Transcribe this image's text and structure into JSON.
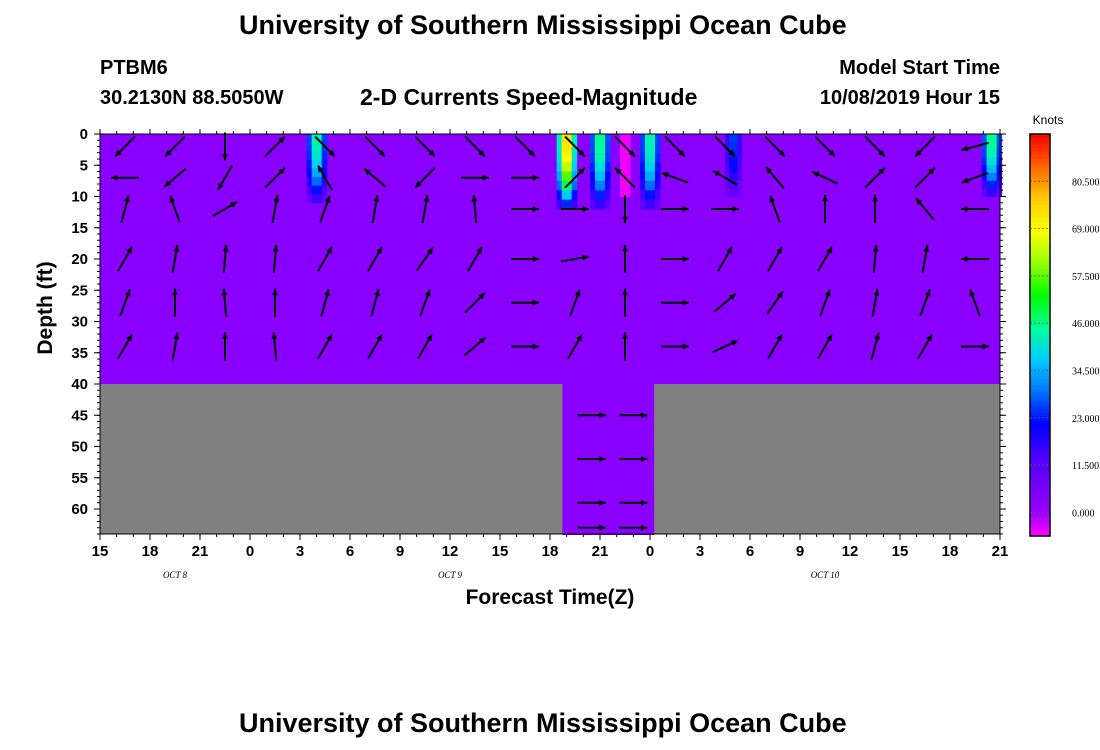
{
  "header": {
    "title_top": "University of Southern Mississippi Ocean Cube",
    "title_bottom": "University of Southern Mississippi Ocean Cube",
    "station": "PTBM6",
    "location": "30.2130N 88.5050W",
    "chart_title": "2-D Currents Speed-Magnitude",
    "model_start_label": "Model Start Time",
    "model_start_value": "10/08/2019 Hour 15"
  },
  "chart_data": {
    "type": "heatmap",
    "title": "2-D Currents Speed-Magnitude",
    "xlabel": "Forecast Time(Z)",
    "ylabel": "Depth (ft)",
    "x_ticks": [
      "15",
      "18",
      "21",
      "0",
      "3",
      "6",
      "9",
      "12",
      "15",
      "18",
      "21",
      "0",
      "3",
      "6",
      "9",
      "12",
      "15",
      "18",
      "21"
    ],
    "x_hours": [
      0,
      3,
      6,
      9,
      12,
      15,
      18,
      21,
      24,
      27,
      30,
      33,
      36,
      39,
      42,
      45,
      48,
      51,
      54
    ],
    "date_labels": [
      {
        "label": "OCT 8",
        "hour": 4.5
      },
      {
        "label": "OCT 9",
        "hour": 21
      },
      {
        "label": "OCT 10",
        "hour": 43.5
      }
    ],
    "y_ticks": [
      0,
      5,
      10,
      15,
      20,
      25,
      30,
      35,
      40,
      45,
      50,
      55,
      60
    ],
    "ylim": [
      0,
      64
    ],
    "colorbar": {
      "unit": "Knots",
      "ticks": [
        0.0,
        11.5,
        23.0,
        34.5,
        46.0,
        57.5,
        69.0,
        80.5
      ],
      "tick_labels": [
        "0.000",
        "11.500",
        "23.000",
        "34.500",
        "46.000",
        "57.500",
        "69.000",
        "80.500"
      ],
      "range": [
        -5.75,
        92.0
      ]
    },
    "background_speed_knots": 3,
    "land_color": "#808080",
    "bottom_depth_ft": 40,
    "deep_channel": {
      "hour_start": 27.75,
      "hour_end": 33.25,
      "depth_ft": 64
    },
    "speed_columns": [
      {
        "hour": 13.0,
        "half_width": 0.6,
        "depth_ft": 11,
        "peak_knots": 52
      },
      {
        "hour": 28.0,
        "half_width": 0.6,
        "depth_ft": 12,
        "peak_knots": 88
      },
      {
        "hour": 30.0,
        "half_width": 0.6,
        "depth_ft": 12,
        "peak_knots": 55
      },
      {
        "hour": 31.5,
        "half_width": 0.3,
        "depth_ft": 10,
        "peak_knots": -5
      },
      {
        "hour": 33.0,
        "half_width": 0.6,
        "depth_ft": 12,
        "peak_knots": 52
      },
      {
        "hour": 38.0,
        "half_width": 0.5,
        "depth_ft": 10,
        "peak_knots": 30
      },
      {
        "hour": 53.5,
        "half_width": 0.6,
        "depth_ft": 10,
        "peak_knots": 55
      }
    ],
    "vector_rows": [
      {
        "depth_ft": 2,
        "angles_deg": [
          225,
          225,
          270,
          45,
          315,
          315,
          315,
          315,
          315,
          315,
          315,
          315,
          315,
          315,
          315,
          315,
          225,
          195
        ]
      },
      {
        "depth_ft": 7,
        "angles_deg": [
          180,
          220,
          240,
          45,
          120,
          140,
          225,
          0,
          0,
          45,
          135,
          160,
          150,
          130,
          155,
          45,
          45,
          200
        ]
      },
      {
        "depth_ft": 12,
        "angles_deg": [
          75,
          110,
          30,
          80,
          70,
          80,
          80,
          95,
          0,
          0,
          270,
          0,
          0,
          110,
          90,
          90,
          130,
          180
        ]
      },
      {
        "depth_ft": 20,
        "angles_deg": [
          60,
          80,
          85,
          85,
          60,
          60,
          55,
          60,
          0,
          10,
          90,
          0,
          60,
          60,
          60,
          85,
          80,
          180
        ]
      },
      {
        "depth_ft": 27,
        "angles_deg": [
          70,
          90,
          95,
          90,
          75,
          75,
          70,
          45,
          0,
          70,
          90,
          0,
          40,
          55,
          70,
          80,
          70,
          110
        ]
      },
      {
        "depth_ft": 34,
        "angles_deg": [
          60,
          80,
          90,
          95,
          60,
          60,
          60,
          40,
          0,
          60,
          90,
          0,
          25,
          60,
          60,
          75,
          60,
          0
        ]
      },
      {
        "depth_ft": 45,
        "angles_deg": [
          0,
          0
        ],
        "hours": [
          29.5,
          32
        ]
      },
      {
        "depth_ft": 52,
        "angles_deg": [
          0,
          0
        ],
        "hours": [
          29.5,
          32
        ]
      },
      {
        "depth_ft": 59,
        "angles_deg": [
          0,
          0
        ],
        "hours": [
          29.5,
          32
        ]
      },
      {
        "depth_ft": 63,
        "angles_deg": [
          0,
          0
        ],
        "hours": [
          29.5,
          32
        ]
      }
    ],
    "vector_hours": [
      0,
      3,
      6,
      9,
      12,
      15,
      18,
      21,
      24,
      27,
      30,
      33,
      36,
      39,
      42,
      45,
      48,
      51,
      54
    ]
  }
}
